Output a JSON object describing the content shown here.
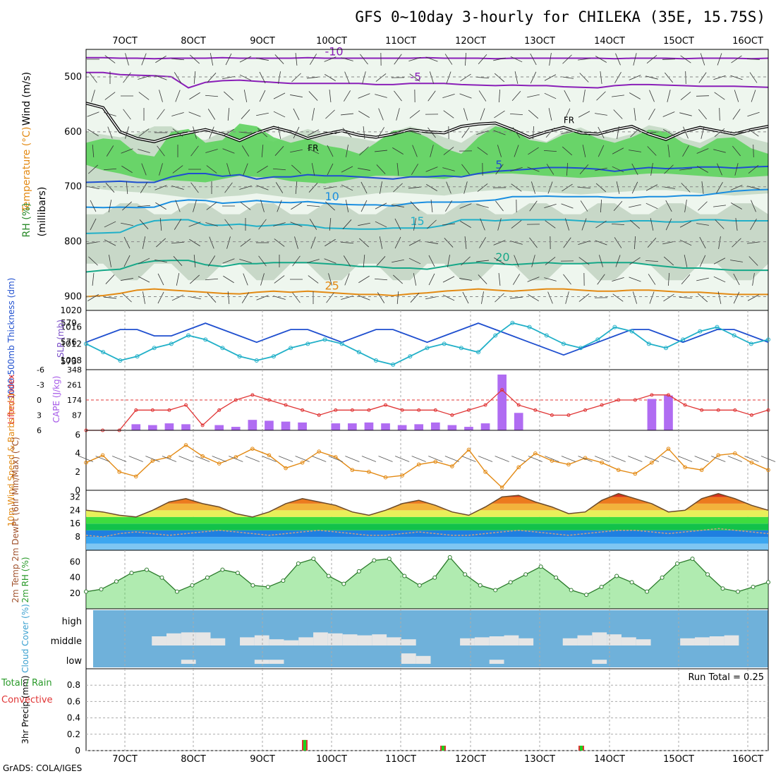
{
  "title": "GFS 0~10day 3-hourly for CHILEKA (35E, 15.75S)",
  "footer": "GrADS: COLA/IGES",
  "colors": {
    "purple": "#8a1fb8",
    "blue": "#1f4fcf",
    "cyan": "#21b0c8",
    "teal": "#16a888",
    "orange": "#e38a14",
    "rust": "#cc4a10",
    "green": "#1dd21d",
    "bar_purple": "#b06cf2",
    "cloud_bg": "#6fb1da",
    "cloud_fill": "#e6e6e6",
    "lift_red": "#e03434",
    "rh_green": "#4fd24f"
  },
  "chart_data": [
    {
      "panel": "upper_air",
      "type": "contour",
      "date_ticks": [
        "7OCT",
        "8OCT",
        "9OCT",
        "10OCT",
        "11OCT",
        "12OCT",
        "13OCT",
        "14OCT",
        "15OCT",
        "16OCT"
      ],
      "ylabels": [
        "Wind (m/s)",
        "Temperature (°C)",
        "RH (%)",
        "(millibars)"
      ],
      "yticks": [
        500,
        600,
        700,
        800,
        900
      ],
      "yrange": [
        450,
        925
      ],
      "isotherms": [
        {
          "label": "-10",
          "value": -10,
          "levels": [
            465,
            465,
            466,
            466,
            467,
            466,
            466,
            466,
            465,
            466,
            466,
            466,
            466,
            465,
            466,
            466,
            466,
            466,
            466,
            466,
            465,
            466,
            466,
            466,
            467,
            466,
            466,
            466,
            466,
            466,
            466,
            467,
            466,
            466,
            466,
            467,
            466,
            466,
            466,
            467,
            466
          ]
        },
        {
          "label": "-5",
          "value": -5,
          "levels": [
            492,
            492,
            496,
            497,
            498,
            500,
            520,
            510,
            507,
            506,
            508,
            510,
            512,
            512,
            512,
            512,
            512,
            514,
            514,
            512,
            512,
            512,
            514,
            515,
            516,
            515,
            516,
            516,
            518,
            519,
            520,
            516,
            514,
            514,
            515,
            516,
            517,
            517,
            517,
            518,
            519
          ]
        },
        {
          "label": "5",
          "value": 5,
          "levels": [
            692,
            691,
            690,
            692,
            692,
            682,
            676,
            676,
            681,
            678,
            686,
            682,
            682,
            678,
            680,
            680,
            682,
            684,
            686,
            682,
            682,
            680,
            682,
            676,
            672,
            670,
            668,
            665,
            665,
            666,
            668,
            672,
            668,
            665,
            667,
            666,
            664,
            664,
            666,
            664,
            663
          ]
        },
        {
          "label": "10",
          "value": 10,
          "levels": [
            737,
            738,
            737,
            738,
            737,
            727,
            724,
            725,
            730,
            728,
            725,
            728,
            729,
            727,
            730,
            732,
            733,
            733,
            735,
            730,
            728,
            728,
            728,
            726,
            724,
            718,
            718,
            717,
            718,
            718,
            718,
            720,
            720,
            718,
            718,
            716,
            716,
            712,
            708,
            706,
            705
          ]
        },
        {
          "label": "15",
          "value": 15,
          "levels": [
            785,
            784,
            783,
            770,
            762,
            760,
            760,
            770,
            770,
            768,
            772,
            770,
            768,
            770,
            775,
            776,
            777,
            777,
            775,
            775,
            775,
            770,
            760,
            760,
            762,
            760,
            760,
            760,
            760,
            762,
            764,
            764,
            762,
            762,
            764,
            764,
            760,
            760,
            762,
            762,
            762
          ]
        },
        {
          "label": "20",
          "value": 20,
          "levels": [
            855,
            852,
            850,
            840,
            835,
            834,
            834,
            842,
            845,
            840,
            840,
            838,
            838,
            838,
            840,
            842,
            845,
            845,
            848,
            848,
            850,
            845,
            840,
            838,
            840,
            842,
            840,
            838,
            840,
            840,
            838,
            838,
            838,
            842,
            845,
            848,
            848,
            850,
            852,
            852,
            852
          ]
        },
        {
          "label": "25",
          "value": 25,
          "levels": [
            900,
            898,
            894,
            888,
            886,
            888,
            890,
            892,
            894,
            895,
            892,
            890,
            892,
            890,
            892,
            894,
            896,
            896,
            898,
            895,
            893,
            890,
            888,
            886,
            888,
            890,
            888,
            886,
            886,
            888,
            890,
            890,
            888,
            888,
            890,
            892,
            892,
            894,
            896,
            896,
            896
          ]
        }
      ],
      "freezing_level": {
        "label": "FR",
        "levels": [
          548,
          556,
          600,
          612,
          618,
          608,
          602,
          596,
          604,
          616,
          602,
          592,
          600,
          612,
          604,
          598,
          606,
          610,
          604,
          596,
          600,
          602,
          590,
          586,
          584,
          596,
          610,
          600,
          592,
          602,
          604,
          596,
          590,
          604,
          614,
          600,
          592,
          598,
          604,
          596,
          590
        ]
      },
      "moisture_layers": [
        {
          "name": "RH>70",
          "top": [
            600,
            605,
            610,
            603,
            590,
            590,
            610,
            615,
            600,
            592,
            612,
            618,
            605,
            595,
            605,
            608,
            612,
            618,
            600,
            590,
            598,
            610,
            620,
            600,
            585,
            592,
            610,
            618,
            600,
            592,
            606,
            612,
            604,
            588,
            594,
            612,
            620,
            606,
            600,
            612,
            620
          ],
          "bottom": [
            700,
            705,
            708,
            710,
            712,
            716,
            720,
            722,
            718,
            716,
            712,
            716,
            720,
            722,
            724,
            720,
            716,
            712,
            710,
            712,
            714,
            716,
            712,
            708,
            706,
            706,
            708,
            710,
            712,
            714,
            712,
            710,
            708,
            706,
            706,
            708,
            712,
            714,
            716,
            714,
            712
          ]
        },
        {
          "name": "RH>90",
          "top": [
            620,
            612,
            615,
            640,
            645,
            600,
            595,
            620,
            615,
            585,
            590,
            610,
            620,
            612,
            625,
            630,
            640,
            620,
            598,
            596,
            610,
            630,
            640,
            610,
            590,
            596,
            615,
            620,
            605,
            598,
            612,
            620,
            610,
            596,
            600,
            620,
            630,
            612,
            610,
            630,
            640
          ],
          "bottom": [
            660,
            670,
            676,
            684,
            690,
            688,
            690,
            692,
            686,
            680,
            682,
            684,
            690,
            692,
            694,
            690,
            684,
            680,
            680,
            682,
            684,
            686,
            680,
            678,
            676,
            676,
            678,
            680,
            682,
            684,
            682,
            680,
            678,
            676,
            676,
            678,
            680,
            682,
            684,
            682,
            680
          ]
        }
      ]
    },
    {
      "panel": "thickness_slp",
      "type": "line",
      "ylabel_left": "1000-500mb Thickness (dm)",
      "ylabel_right": "SLP (mb)",
      "left_ticks": [
        573,
        576,
        579
      ],
      "right_ticks": [
        1008,
        1012,
        1016,
        1020
      ],
      "left_range": [
        571.7,
        581.0
      ],
      "right_range": [
        1005.8,
        1020.0
      ],
      "series": [
        {
          "name": "1000-500mb Thickness",
          "axis": "left",
          "values": [
            576,
            577,
            578,
            578,
            577,
            577,
            578,
            579,
            578,
            577,
            576,
            577,
            578,
            578,
            577,
            576,
            577,
            578,
            578,
            577,
            576,
            577,
            578,
            579,
            578,
            577,
            576,
            575,
            574,
            575,
            576,
            577,
            578,
            578,
            577,
            576,
            577,
            578,
            578,
            577,
            576
          ]
        },
        {
          "name": "SLP",
          "axis": "right",
          "values": [
            1012,
            1010,
            1008,
            1009,
            1011,
            1012,
            1014,
            1013,
            1011,
            1009,
            1008,
            1009,
            1011,
            1012,
            1013,
            1012,
            1010,
            1008,
            1007,
            1009,
            1011,
            1012,
            1011,
            1010,
            1014,
            1017,
            1016,
            1014,
            1012,
            1011,
            1013,
            1016,
            1015,
            1012,
            1011,
            1013,
            1015,
            1016,
            1014,
            1012,
            1013
          ]
        }
      ]
    },
    {
      "panel": "cape_li",
      "type": "bar",
      "ylabel_left": "Lifted Index",
      "ylabel_right": "CAPE (J/kg)",
      "left_ticks": [
        -6,
        -3,
        0,
        3,
        6
      ],
      "right_ticks": [
        87,
        174,
        261,
        348
      ],
      "cape_range": [
        0,
        348
      ],
      "lifted_index_range": [
        -6,
        6
      ],
      "cape": [
        0,
        0,
        0,
        35,
        30,
        40,
        35,
        0,
        30,
        20,
        60,
        55,
        50,
        45,
        0,
        40,
        40,
        45,
        40,
        30,
        35,
        45,
        30,
        20,
        40,
        320,
        100,
        0,
        0,
        0,
        0,
        0,
        0,
        0,
        180,
        200,
        0,
        0,
        0,
        0,
        0,
        0
      ],
      "lifted_index": [
        6,
        6,
        6,
        2,
        2,
        2,
        1,
        5,
        2,
        0,
        -1,
        0,
        1,
        2,
        3,
        2,
        2,
        2,
        1,
        2,
        2,
        2,
        3,
        2,
        1,
        -2,
        1,
        2,
        3,
        3,
        2,
        1,
        0,
        0,
        -1,
        -1,
        1,
        2,
        2,
        2,
        3,
        2
      ]
    },
    {
      "panel": "wind10m",
      "type": "line",
      "ylabel": "10m Wind Speed & Barbs (m/s)",
      "yticks": [
        0,
        2,
        4,
        6
      ],
      "yrange": [
        0,
        6.5
      ],
      "values": [
        3.0,
        3.8,
        2.0,
        1.5,
        3.2,
        3.6,
        4.9,
        3.7,
        2.9,
        3.6,
        4.5,
        3.8,
        2.4,
        3.0,
        4.2,
        3.6,
        2.2,
        2.0,
        1.4,
        1.6,
        2.8,
        3.1,
        2.6,
        4.4,
        2.0,
        0.3,
        2.5,
        4.0,
        3.2,
        2.8,
        3.5,
        3.0,
        2.2,
        1.8,
        3.0,
        4.5,
        2.5,
        2.2,
        3.8,
        4.0,
        3.0,
        2.2
      ]
    },
    {
      "panel": "temp2m",
      "type": "area",
      "ylabel": "2m Temp 2m DewPt (6hr Min/Max) (°C)",
      "yticks": [
        8,
        16,
        24,
        32
      ],
      "yrange": [
        0,
        36
      ],
      "temperature": [
        24,
        23,
        21,
        20,
        24,
        29,
        31,
        28,
        26,
        22,
        20,
        23,
        28,
        31,
        29,
        27,
        23,
        21,
        24,
        28,
        30,
        27,
        23,
        21,
        26,
        32,
        33,
        29,
        26,
        22,
        23,
        30,
        34,
        31,
        28,
        23,
        24,
        31,
        34,
        31,
        27,
        24
      ],
      "dewpoint": [
        9,
        8,
        10,
        11,
        10,
        9,
        10,
        11,
        12,
        11,
        10,
        9,
        10,
        11,
        12,
        11,
        10,
        9,
        9,
        10,
        11,
        10,
        9,
        9,
        10,
        11,
        12,
        11,
        10,
        9,
        10,
        11,
        12,
        12,
        11,
        10,
        11,
        12,
        13,
        12,
        11,
        10
      ]
    },
    {
      "panel": "rh2m",
      "type": "area",
      "ylabel": "2m RH (%)",
      "yticks": [
        20,
        40,
        60
      ],
      "yrange": [
        0,
        75
      ],
      "values": [
        22,
        25,
        35,
        46,
        50,
        40,
        22,
        30,
        40,
        50,
        46,
        30,
        28,
        36,
        58,
        64,
        42,
        32,
        48,
        62,
        64,
        42,
        30,
        40,
        66,
        44,
        30,
        24,
        34,
        44,
        54,
        40,
        24,
        18,
        28,
        42,
        34,
        22,
        40,
        58,
        64,
        44,
        26,
        22,
        28,
        34
      ]
    },
    {
      "panel": "cloud_cover",
      "type": "heatmap",
      "ylabel": "Cloud Cover (%)",
      "levels": [
        "high",
        "middle",
        "low"
      ],
      "middle": [
        0,
        0,
        0,
        0,
        0.5,
        0.8,
        0.9,
        0.9,
        0.3,
        0,
        0.4,
        0.6,
        0.2,
        0.1,
        0.4,
        0.9,
        0.8,
        0.7,
        0.6,
        0.7,
        0.4,
        0.2,
        0,
        0,
        0,
        0.3,
        0.4,
        0.5,
        0.6,
        0.3,
        0,
        0,
        0.3,
        0.6,
        0.9,
        0.7,
        0.4,
        0.2,
        0,
        0,
        0.3,
        0.4,
        0.5,
        0.6,
        0,
        0
      ],
      "low": [
        0,
        0,
        0,
        0,
        0,
        0,
        0.1,
        0,
        0,
        0,
        0,
        0.1,
        0.1,
        0,
        0,
        0,
        0,
        0,
        0,
        0,
        0,
        0.6,
        0.4,
        0,
        0,
        0,
        0,
        0.1,
        0,
        0,
        0,
        0,
        0,
        0,
        0.1,
        0,
        0,
        0,
        0,
        0,
        0,
        0,
        0,
        0,
        0
      ]
    },
    {
      "panel": "precip",
      "type": "bar",
      "ylabel": "3hr Precip (mm)",
      "legend": "Total / Rain Convective",
      "yticks": [
        0,
        0.2,
        0.4,
        0.6,
        0.8
      ],
      "yrange": [
        0,
        1.0
      ],
      "run_total_label": "Run Total = 0.25",
      "bars": [
        {
          "date": "9OCT",
          "total": 0.13
        },
        {
          "date": "11OCT",
          "total": 0.06
        },
        {
          "date": "13OCT",
          "total": 0.06
        }
      ]
    }
  ]
}
